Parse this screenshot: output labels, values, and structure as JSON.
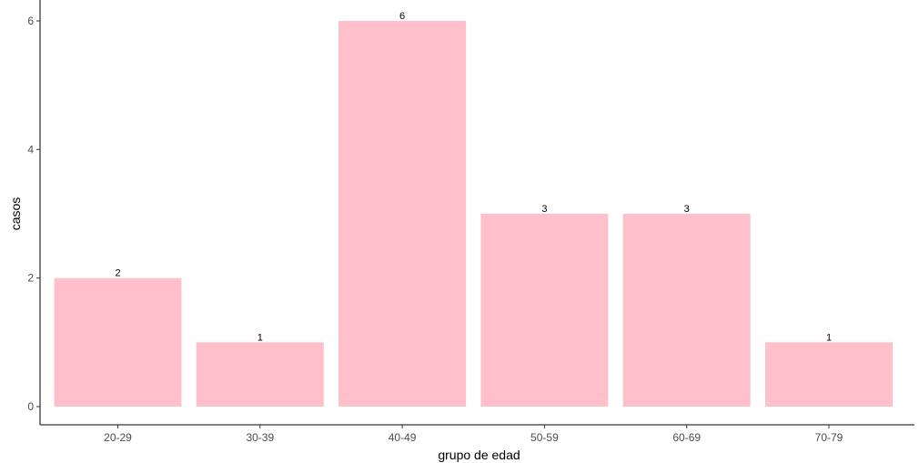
{
  "chart_data": {
    "type": "bar",
    "categories": [
      "20-29",
      "30-39",
      "40-49",
      "50-59",
      "60-69",
      "70-79"
    ],
    "values": [
      2,
      1,
      6,
      3,
      3,
      1
    ],
    "data_labels": [
      "2",
      "1",
      "6",
      "3",
      "3",
      "1"
    ],
    "title": "",
    "xlabel": "grupo de edad",
    "ylabel": "casos",
    "ylim": [
      0,
      6
    ],
    "yticks": [
      0,
      2,
      4,
      6
    ],
    "grid": false,
    "legend": "none",
    "bar_color": "#ffc0cb"
  }
}
